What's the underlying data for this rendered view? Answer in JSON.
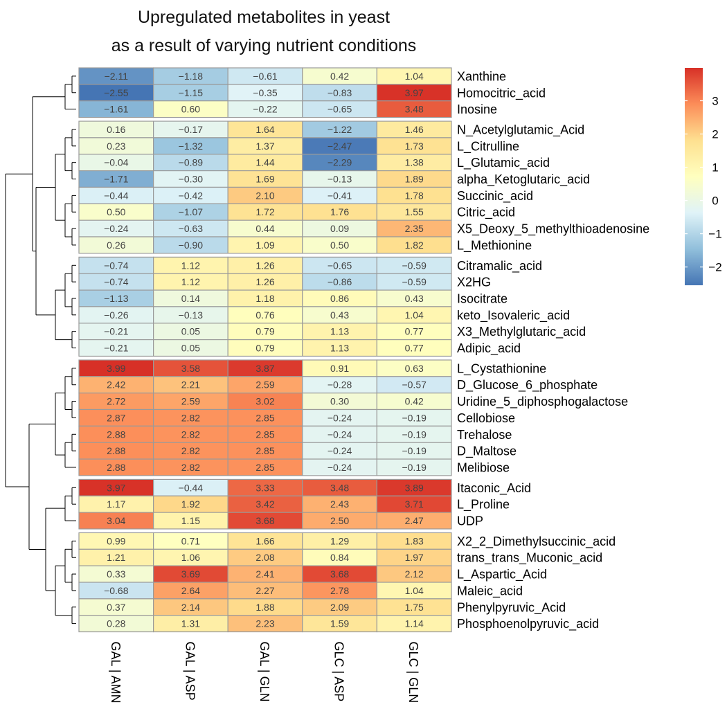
{
  "title_lines": [
    "Upregulated metabolites in yeast",
    "as a result of varying nutrient conditions"
  ],
  "chart_data": {
    "type": "heatmap",
    "columns": [
      "GAL | AMN",
      "GAL | ASP",
      "GAL | GLN",
      "GLC | ASP",
      "GLC | GLN"
    ],
    "row_groups": [
      {
        "rows": [
          {
            "name": "Xanthine",
            "values": [
              -2.11,
              -1.18,
              -0.61,
              0.42,
              1.04
            ]
          },
          {
            "name": "Homocitric_acid",
            "values": [
              -2.55,
              -1.15,
              -0.35,
              -0.83,
              3.97
            ]
          },
          {
            "name": "Inosine",
            "values": [
              -1.61,
              0.6,
              -0.22,
              -0.65,
              3.48
            ]
          }
        ]
      },
      {
        "rows": [
          {
            "name": "N_Acetylglutamic_Acid",
            "values": [
              0.16,
              -0.17,
              1.64,
              -1.22,
              1.46
            ]
          },
          {
            "name": "L_Citrulline",
            "values": [
              0.23,
              -1.32,
              1.37,
              -2.47,
              1.73
            ]
          },
          {
            "name": "L_Glutamic_acid",
            "values": [
              -0.04,
              -0.89,
              1.44,
              -2.29,
              1.38
            ]
          },
          {
            "name": "alpha_Ketoglutaric_acid",
            "values": [
              -1.71,
              -0.3,
              1.69,
              -0.13,
              1.89
            ]
          },
          {
            "name": "Succinic_acid",
            "values": [
              -0.44,
              -0.42,
              2.1,
              -0.41,
              1.78
            ]
          },
          {
            "name": "Citric_acid",
            "values": [
              0.5,
              -1.07,
              1.72,
              1.76,
              1.55
            ]
          },
          {
            "name": "X5_Deoxy_5_methylthioadenosine",
            "values": [
              -0.24,
              -0.63,
              0.44,
              0.09,
              2.35
            ]
          },
          {
            "name": "L_Methionine",
            "values": [
              0.26,
              -0.9,
              1.09,
              0.5,
              1.82
            ]
          }
        ]
      },
      {
        "rows": [
          {
            "name": "Citramalic_acid",
            "values": [
              -0.74,
              1.12,
              1.26,
              -0.65,
              -0.59
            ]
          },
          {
            "name": "X2HG",
            "values": [
              -0.74,
              1.12,
              1.26,
              -0.86,
              -0.59
            ]
          },
          {
            "name": "Isocitrate",
            "values": [
              -1.13,
              0.14,
              1.18,
              0.86,
              0.43
            ]
          },
          {
            "name": "keto_Isovaleric_acid",
            "values": [
              -0.26,
              -0.13,
              0.76,
              0.43,
              1.04
            ]
          },
          {
            "name": "X3_Methylglutaric_acid",
            "values": [
              -0.21,
              0.05,
              0.79,
              1.13,
              0.77
            ]
          },
          {
            "name": "Adipic_acid",
            "values": [
              -0.21,
              0.05,
              0.79,
              1.13,
              0.77
            ]
          }
        ]
      },
      {
        "rows": [
          {
            "name": "L_Cystathionine",
            "values": [
              3.99,
              3.58,
              3.87,
              0.91,
              0.63
            ]
          },
          {
            "name": "D_Glucose_6_phosphate",
            "values": [
              2.42,
              2.21,
              2.59,
              -0.28,
              -0.57
            ]
          },
          {
            "name": "Uridine_5_diphosphogalactose",
            "values": [
              2.72,
              2.59,
              3.02,
              0.3,
              0.42
            ]
          },
          {
            "name": "Cellobiose",
            "values": [
              2.87,
              2.82,
              2.85,
              -0.24,
              -0.19
            ]
          },
          {
            "name": "Trehalose",
            "values": [
              2.88,
              2.82,
              2.85,
              -0.24,
              -0.19
            ]
          },
          {
            "name": "D_Maltose",
            "values": [
              2.88,
              2.82,
              2.85,
              -0.24,
              -0.19
            ]
          },
          {
            "name": "Melibiose",
            "values": [
              2.88,
              2.82,
              2.85,
              -0.24,
              -0.19
            ]
          }
        ]
      },
      {
        "rows": [
          {
            "name": "Itaconic_Acid",
            "values": [
              3.97,
              -0.44,
              3.33,
              3.48,
              3.89
            ]
          },
          {
            "name": "L_Proline",
            "values": [
              1.17,
              1.92,
              3.42,
              2.43,
              3.71
            ]
          },
          {
            "name": "UDP",
            "values": [
              3.04,
              1.15,
              3.68,
              2.5,
              2.47
            ]
          }
        ]
      },
      {
        "rows": [
          {
            "name": "X2_2_Dimethylsuccinic_acid",
            "values": [
              0.99,
              0.71,
              1.66,
              1.29,
              1.83
            ]
          },
          {
            "name": "trans_trans_Muconic_acid",
            "values": [
              1.21,
              1.06,
              2.08,
              0.84,
              1.97
            ]
          },
          {
            "name": "L_Aspartic_Acid",
            "values": [
              0.33,
              3.69,
              2.41,
              3.68,
              2.12
            ]
          },
          {
            "name": "Maleic_acid",
            "values": [
              -0.68,
              2.64,
              2.27,
              2.78,
              1.04
            ]
          },
          {
            "name": "Phenylpyruvic_Acid",
            "values": [
              0.37,
              2.14,
              1.88,
              2.09,
              1.75
            ]
          },
          {
            "name": "Phosphoenolpyruvic_acid",
            "values": [
              0.28,
              1.31,
              2.23,
              1.59,
              1.14
            ]
          }
        ]
      }
    ],
    "value_range": [
      -2.55,
      3.99
    ],
    "color_scale": {
      "low": "#4575B4",
      "mid": "#FFFFBF",
      "high": "#D73027",
      "stops": [
        "#4575B4",
        "#91BFDB",
        "#E0F3F8",
        "#FFFFBF",
        "#FEE090",
        "#FC8D59",
        "#D73027"
      ]
    },
    "legend": {
      "position": "right",
      "ticks": [
        -2,
        -1,
        0,
        1,
        2,
        3
      ]
    },
    "cell_border_color": "#9A9A9A",
    "row_dendrogram": true,
    "row_groups_split": 6
  }
}
